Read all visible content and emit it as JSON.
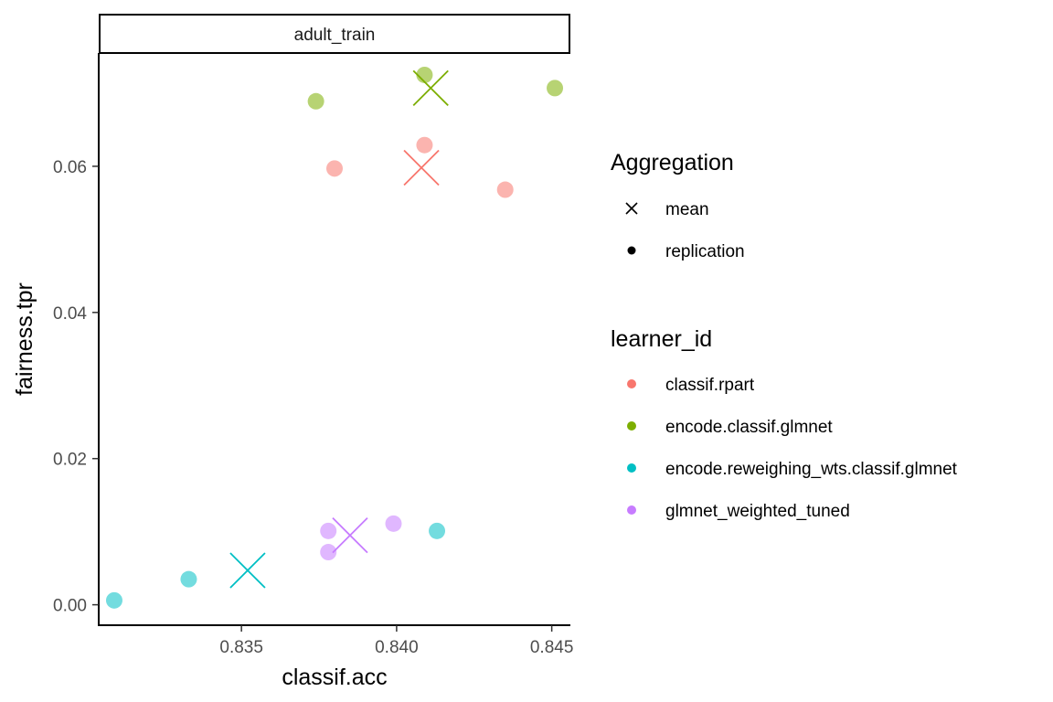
{
  "chart_data": {
    "type": "scatter",
    "facet_label": "adult_train",
    "xlabel": "classif.acc",
    "ylabel": "fairness.tpr",
    "xlim": [
      0.8304,
      0.8456
    ],
    "ylim": [
      -0.0028,
      0.0755
    ],
    "x_ticks": [
      0.835,
      0.84,
      0.845
    ],
    "x_tick_labels": [
      "0.835",
      "0.840",
      "0.845"
    ],
    "y_ticks": [
      0.0,
      0.02,
      0.04,
      0.06
    ],
    "y_tick_labels": [
      "0.00",
      "0.02",
      "0.04",
      "0.06"
    ],
    "grid": false,
    "legend_placement": "right",
    "legends": [
      {
        "title": "Aggregation",
        "entries": [
          {
            "label": "mean",
            "shape": "cross"
          },
          {
            "label": "replication",
            "shape": "dot"
          }
        ]
      },
      {
        "title": "learner_id",
        "entries": [
          {
            "label": "classif.rpart",
            "color": "#F8766D"
          },
          {
            "label": "encode.classif.glmnet",
            "color": "#7CAE00"
          },
          {
            "label": "encode.reweighing_wts.classif.glmnet",
            "color": "#00BFC4"
          },
          {
            "label": "glmnet_weighted_tuned",
            "color": "#C77CFF"
          }
        ]
      }
    ],
    "series": [
      {
        "name": "classif.rpart",
        "color": "#F8766D",
        "replication": [
          [
            0.838,
            0.0597
          ],
          [
            0.8409,
            0.0629
          ],
          [
            0.8435,
            0.0568
          ]
        ],
        "mean": [
          0.8408,
          0.0598
        ]
      },
      {
        "name": "encode.classif.glmnet",
        "color": "#7CAE00",
        "replication": [
          [
            0.8374,
            0.0689
          ],
          [
            0.8409,
            0.0725
          ],
          [
            0.8451,
            0.0707
          ]
        ],
        "mean": [
          0.8411,
          0.0707
        ]
      },
      {
        "name": "encode.reweighing_wts.classif.glmnet",
        "color": "#00BFC4",
        "replication": [
          [
            0.8309,
            0.0006
          ],
          [
            0.8333,
            0.0035
          ],
          [
            0.8413,
            0.0101
          ]
        ],
        "mean": [
          0.8352,
          0.0047
        ]
      },
      {
        "name": "glmnet_weighted_tuned",
        "color": "#C77CFF",
        "replication": [
          [
            0.8378,
            0.0101
          ],
          [
            0.8378,
            0.0072
          ],
          [
            0.8399,
            0.0111
          ]
        ],
        "mean": [
          0.8385,
          0.0095
        ]
      }
    ]
  }
}
